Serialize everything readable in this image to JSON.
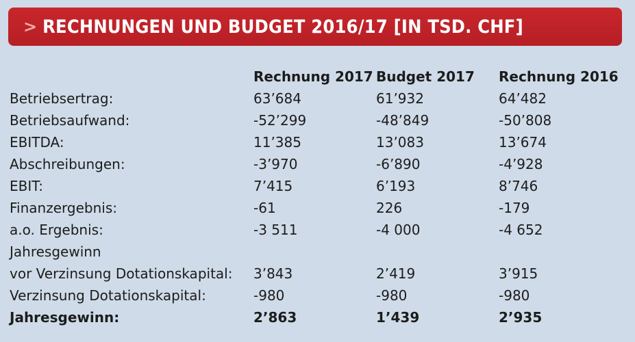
{
  "title": {
    "chevron": ">",
    "text": "RECHNUNGEN UND BUDGET 2016/17 [IN TSD. CHF]"
  },
  "table": {
    "columns": [
      "Rechnung 2017",
      "Budget 2017",
      "Rechnung 2016"
    ],
    "rows": [
      {
        "label": "Betriebsertrag:",
        "values": [
          "63’684",
          "61’932",
          "64’482"
        ]
      },
      {
        "label": "Betriebsaufwand:",
        "values": [
          "-52’299",
          "-48’849",
          "-50’808"
        ]
      },
      {
        "label": "EBITDA:",
        "values": [
          "11’385",
          "13’083",
          "13’674"
        ]
      },
      {
        "label": "Abschreibungen:",
        "values": [
          "-3’970",
          "-6’890",
          "-4’928"
        ]
      },
      {
        "label": "EBIT:",
        "values": [
          "7’415",
          "6’193",
          "8’746"
        ]
      },
      {
        "label": "Finanzergebnis:",
        "values": [
          "-61",
          "226",
          "-179"
        ]
      },
      {
        "label": "a.o. Ergebnis:",
        "values": [
          "-3 511",
          "-4 000",
          "-4 652"
        ]
      },
      {
        "label": "Jahresgewinn",
        "values": [
          "",
          "",
          ""
        ]
      },
      {
        "label": "vor Verzinsung Dotationskapital:",
        "values": [
          "3’843",
          "2’419",
          "3’915"
        ]
      },
      {
        "label": "Verzinsung Dotationskapital:",
        "values": [
          "-980",
          "-980",
          "-980"
        ]
      },
      {
        "label": "Jahresgewinn:",
        "values": [
          "2’863",
          "1’439",
          "2’935"
        ]
      }
    ]
  }
}
